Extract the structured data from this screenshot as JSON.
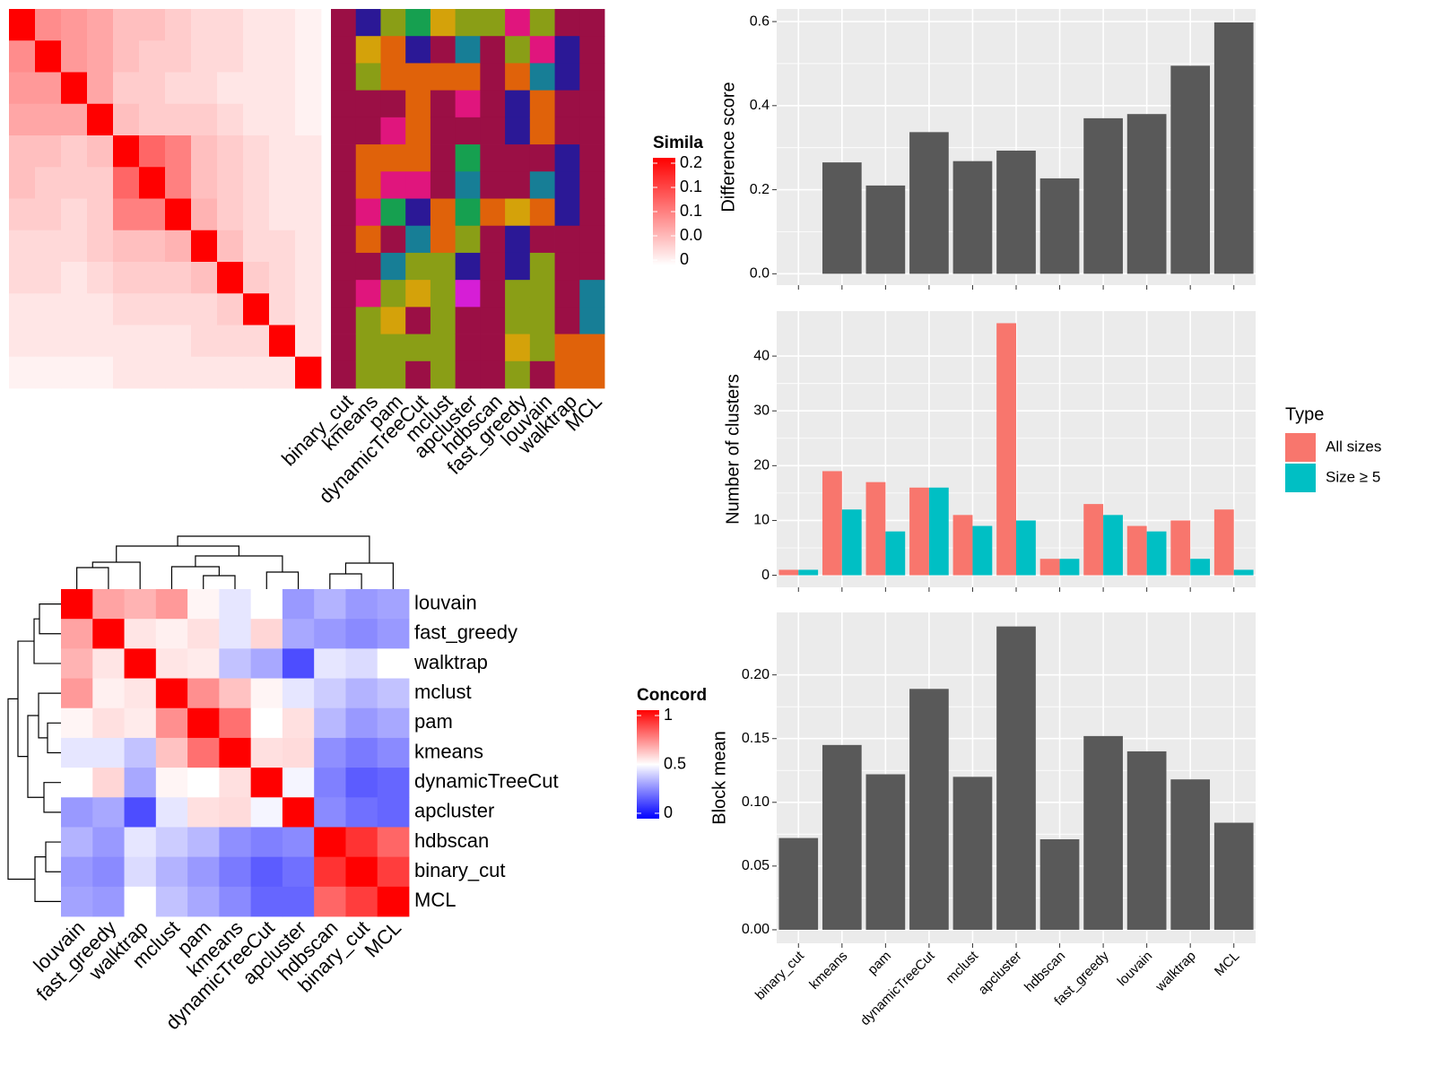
{
  "chart_data": [
    {
      "type": "heatmap",
      "legend_title": "Simila",
      "zlim": [
        0,
        0.2
      ],
      "color_low": "#ffffff",
      "color_high": "#ff0000",
      "zticks": [
        0.2,
        {
          "value": 0.15,
          "label": "0.1"
        },
        0.1,
        {
          "value": 0.05,
          "label": "0.0"
        },
        0
      ],
      "values": [
        [
          0.2,
          0.09,
          0.08,
          0.07,
          0.05,
          0.05,
          0.04,
          0.03,
          0.03,
          0.02,
          0.02,
          0.01
        ],
        [
          0.09,
          0.2,
          0.08,
          0.07,
          0.05,
          0.04,
          0.04,
          0.03,
          0.03,
          0.02,
          0.02,
          0.01
        ],
        [
          0.08,
          0.08,
          0.2,
          0.07,
          0.04,
          0.04,
          0.03,
          0.03,
          0.02,
          0.02,
          0.02,
          0.01
        ],
        [
          0.07,
          0.07,
          0.07,
          0.2,
          0.05,
          0.04,
          0.04,
          0.04,
          0.03,
          0.02,
          0.02,
          0.01
        ],
        [
          0.05,
          0.05,
          0.04,
          0.05,
          0.2,
          0.12,
          0.1,
          0.05,
          0.04,
          0.03,
          0.02,
          0.02
        ],
        [
          0.05,
          0.04,
          0.04,
          0.04,
          0.12,
          0.2,
          0.1,
          0.05,
          0.04,
          0.03,
          0.02,
          0.02
        ],
        [
          0.04,
          0.04,
          0.03,
          0.04,
          0.1,
          0.1,
          0.2,
          0.06,
          0.04,
          0.03,
          0.02,
          0.02
        ],
        [
          0.03,
          0.03,
          0.03,
          0.04,
          0.05,
          0.05,
          0.06,
          0.2,
          0.05,
          0.03,
          0.03,
          0.02
        ],
        [
          0.03,
          0.03,
          0.02,
          0.03,
          0.04,
          0.04,
          0.04,
          0.05,
          0.2,
          0.04,
          0.03,
          0.02
        ],
        [
          0.02,
          0.02,
          0.02,
          0.02,
          0.03,
          0.03,
          0.03,
          0.03,
          0.04,
          0.2,
          0.03,
          0.02
        ],
        [
          0.02,
          0.02,
          0.02,
          0.02,
          0.02,
          0.02,
          0.02,
          0.03,
          0.03,
          0.03,
          0.2,
          0.02
        ],
        [
          0.01,
          0.01,
          0.01,
          0.01,
          0.02,
          0.02,
          0.02,
          0.02,
          0.02,
          0.02,
          0.02,
          0.2
        ]
      ]
    },
    {
      "type": "tiles",
      "categories": [
        "binary_cut",
        "kmeans",
        "pam",
        "dynamicTreeCut",
        "mclust",
        "apcluster",
        "hdbscan",
        "fast_greedy",
        "louvain",
        "walktrap",
        "MCL"
      ],
      "palette": [
        "#9b0f45",
        "#8a9e16",
        "#16a050",
        "#2b1896",
        "#d4a20a",
        "#e0157d",
        "#177e96",
        "#e0620a",
        "#d61ed6"
      ],
      "classes": [
        [
          0,
          0,
          0,
          0,
          0,
          0,
          0,
          0,
          0,
          0,
          0,
          0,
          0,
          0
        ],
        [
          3,
          4,
          1,
          0,
          0,
          7,
          7,
          5,
          7,
          0,
          5,
          1,
          1,
          1
        ],
        [
          1,
          7,
          7,
          0,
          5,
          7,
          5,
          2,
          0,
          6,
          1,
          4,
          1,
          1
        ],
        [
          2,
          3,
          7,
          7,
          7,
          7,
          5,
          3,
          6,
          1,
          4,
          0,
          1,
          0
        ],
        [
          4,
          0,
          7,
          0,
          0,
          0,
          0,
          7,
          7,
          1,
          1,
          1,
          1,
          1
        ],
        [
          1,
          6,
          7,
          5,
          0,
          2,
          6,
          2,
          1,
          3,
          8,
          0,
          0,
          0
        ],
        [
          1,
          0,
          0,
          0,
          0,
          0,
          0,
          7,
          0,
          0,
          0,
          0,
          0,
          0
        ],
        [
          5,
          1,
          7,
          3,
          3,
          0,
          0,
          4,
          3,
          3,
          1,
          1,
          4,
          1
        ],
        [
          1,
          5,
          6,
          7,
          7,
          0,
          6,
          7,
          0,
          1,
          1,
          1,
          1,
          0
        ],
        [
          0,
          3,
          3,
          0,
          0,
          3,
          3,
          3,
          0,
          0,
          0,
          0,
          7,
          7
        ],
        [
          0,
          0,
          0,
          0,
          0,
          0,
          0,
          0,
          0,
          0,
          6,
          6,
          7,
          7
        ]
      ]
    },
    {
      "type": "heatmap",
      "legend_title": "Concord",
      "zlim": [
        0,
        1
      ],
      "color_low": "#0000ff",
      "color_mid": "#ffffff",
      "color_high": "#ff0000",
      "zticks": [
        1,
        0.5,
        0
      ],
      "labels": [
        "louvain",
        "fast_greedy",
        "walktrap",
        "mclust",
        "pam",
        "kmeans",
        "dynamicTreeCut",
        "apcluster",
        "hdbscan",
        "binary_cut",
        "MCL"
      ],
      "values": [
        [
          1,
          0.68,
          0.65,
          0.7,
          0.52,
          0.45,
          0.5,
          0.3,
          0.35,
          0.3,
          0.32
        ],
        [
          0.68,
          1,
          0.55,
          0.53,
          0.56,
          0.45,
          0.58,
          0.33,
          0.3,
          0.27,
          0.3
        ],
        [
          0.65,
          0.55,
          1,
          0.55,
          0.54,
          0.38,
          0.33,
          0.15,
          0.45,
          0.43,
          0.5
        ],
        [
          0.7,
          0.53,
          0.55,
          1,
          0.72,
          0.62,
          0.52,
          0.45,
          0.4,
          0.35,
          0.38
        ],
        [
          0.52,
          0.56,
          0.54,
          0.72,
          1,
          0.78,
          0.5,
          0.56,
          0.36,
          0.3,
          0.33
        ],
        [
          0.45,
          0.45,
          0.38,
          0.62,
          0.78,
          1,
          0.56,
          0.57,
          0.28,
          0.24,
          0.27
        ],
        [
          0.5,
          0.58,
          0.33,
          0.52,
          0.5,
          0.56,
          1,
          0.48,
          0.25,
          0.18,
          0.2
        ],
        [
          0.3,
          0.33,
          0.15,
          0.45,
          0.56,
          0.57,
          0.48,
          1,
          0.27,
          0.22,
          0.2
        ],
        [
          0.35,
          0.3,
          0.45,
          0.4,
          0.36,
          0.28,
          0.25,
          0.27,
          1,
          0.9,
          0.8
        ],
        [
          0.3,
          0.27,
          0.43,
          0.35,
          0.3,
          0.24,
          0.18,
          0.22,
          0.9,
          1,
          0.88
        ],
        [
          0.32,
          0.3,
          0.5,
          0.38,
          0.33,
          0.27,
          0.2,
          0.2,
          0.8,
          0.88,
          1
        ]
      ]
    },
    {
      "type": "bar",
      "categories": [
        "binary_cut",
        "kmeans",
        "pam",
        "dynamicTreeCut",
        "mclust",
        "apcluster",
        "hdbscan",
        "fast_greedy",
        "louvain",
        "walktrap",
        "MCL"
      ],
      "grid": true,
      "panels": [
        {
          "ylabel": "Difference score",
          "ylim": [
            -0.027,
            0.63
          ],
          "yticks": [
            {
              "value": 0,
              "label": "0.0"
            },
            0.2,
            0.4,
            0.6
          ],
          "series": [
            {
              "color": "#595959",
              "values": [
                0,
                0.265,
                0.21,
                0.337,
                0.268,
                0.293,
                0.227,
                0.37,
                0.38,
                0.495,
                0.598
              ]
            }
          ]
        },
        {
          "ylabel": "Number of clusters",
          "ylim": [
            -2.2,
            48.2
          ],
          "yticks": [
            0,
            10,
            20,
            30,
            40
          ],
          "legend_title": "Type",
          "series": [
            {
              "name": "All sizes",
              "color": "#f8766d",
              "values": [
                1,
                19,
                17,
                16,
                11,
                46,
                3,
                13,
                9,
                10,
                12
              ]
            },
            {
              "name": "Size ≥ 5",
              "color": "#00bfc4",
              "values": [
                1,
                12,
                8,
                16,
                9,
                10,
                3,
                11,
                8,
                3,
                1
              ]
            }
          ]
        },
        {
          "ylabel": "Block mean",
          "ylim": [
            -0.0106,
            0.249
          ],
          "yticks": [
            {
              "value": 0,
              "label": "0.00"
            },
            {
              "value": 0.05,
              "label": "0.05"
            },
            {
              "value": 0.1,
              "label": "0.10"
            },
            {
              "value": 0.15,
              "label": "0.15"
            },
            {
              "value": 0.2,
              "label": "0.20"
            }
          ],
          "series": [
            {
              "color": "#595959",
              "values": [
                0.072,
                0.145,
                0.122,
                0.189,
                0.12,
                0.238,
                0.071,
                0.152,
                0.14,
                0.118,
                0.084
              ]
            }
          ]
        }
      ]
    }
  ]
}
